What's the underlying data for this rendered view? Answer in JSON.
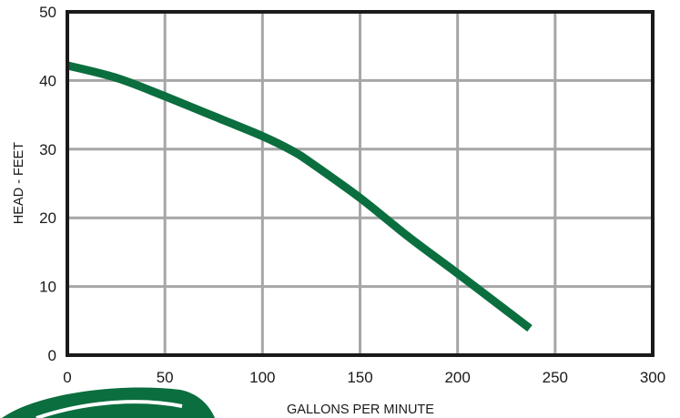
{
  "chart_data": {
    "type": "line",
    "title": "",
    "xlabel": "GALLONS PER MINUTE",
    "ylabel": "HEAD - FEET",
    "xlim": [
      0,
      300
    ],
    "ylim": [
      0,
      50
    ],
    "x_ticks": [
      0,
      50,
      100,
      150,
      200,
      250,
      300
    ],
    "y_ticks": [
      0,
      10,
      20,
      30,
      40,
      50
    ],
    "grid": true,
    "legend": "none",
    "series": [
      {
        "color": "#0b6e3e",
        "x": [
          0,
          25,
          50,
          75,
          100,
          115,
          125,
          150,
          175,
          200,
          225,
          237
        ],
        "y": [
          42.2,
          40.4,
          37.7,
          34.8,
          31.9,
          29.8,
          28.0,
          22.9,
          17.2,
          11.9,
          6.5,
          3.9
        ]
      }
    ]
  },
  "colors": {
    "curve": "#0b6e3e",
    "grid": "#a6a6a6",
    "frame": "#1a1a1a",
    "logo": "#0b6e3e"
  }
}
